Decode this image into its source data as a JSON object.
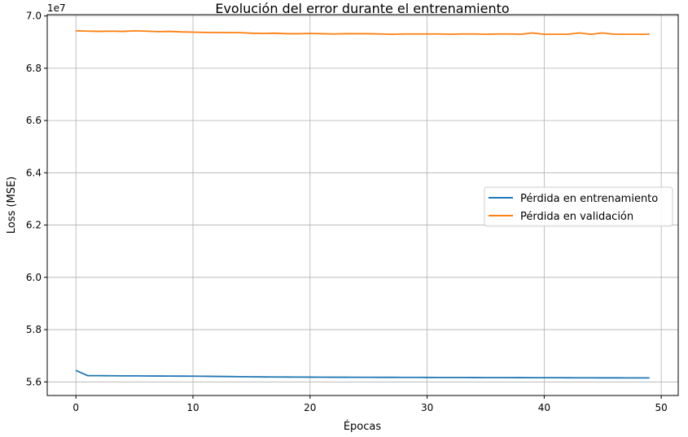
{
  "chart_data": {
    "type": "line",
    "title": "Evolución del error durante el entrenamiento",
    "xlabel": "Épocas",
    "ylabel": "Loss (MSE)",
    "y_offset_label": "1e7",
    "xlim": [
      -2.45,
      51.45
    ],
    "ylim": [
      5.548,
      7.005
    ],
    "xticks": [
      0,
      10,
      20,
      30,
      40,
      50
    ],
    "yticks": [
      5.6,
      5.8,
      6.0,
      6.2,
      6.4,
      6.6,
      6.8,
      7.0
    ],
    "ytick_labels": [
      "5.6",
      "5.8",
      "6.0",
      "6.2",
      "6.4",
      "6.6",
      "6.8",
      "7.0"
    ],
    "grid": true,
    "legend_position": "center-right",
    "x": [
      0,
      1,
      2,
      3,
      4,
      5,
      6,
      7,
      8,
      9,
      10,
      11,
      12,
      13,
      14,
      15,
      16,
      17,
      18,
      19,
      20,
      21,
      22,
      23,
      24,
      25,
      26,
      27,
      28,
      29,
      30,
      31,
      32,
      33,
      34,
      35,
      36,
      37,
      38,
      39,
      40,
      41,
      42,
      43,
      44,
      45,
      46,
      47,
      48,
      49
    ],
    "series": [
      {
        "name": "Pérdida en entrenamiento",
        "color": "#1f77b4",
        "values": [
          5.644,
          5.624,
          5.6238,
          5.6235,
          5.6232,
          5.623,
          5.6228,
          5.6226,
          5.6224,
          5.6222,
          5.622,
          5.6215,
          5.621,
          5.6205,
          5.62,
          5.6195,
          5.619,
          5.6188,
          5.6186,
          5.6184,
          5.6182,
          5.618,
          5.6179,
          5.6178,
          5.6177,
          5.6176,
          5.6175,
          5.6174,
          5.6173,
          5.6172,
          5.6171,
          5.617,
          5.6169,
          5.6168,
          5.6167,
          5.6166,
          5.6165,
          5.6164,
          5.6163,
          5.6162,
          5.6161,
          5.616,
          5.6159,
          5.6158,
          5.6157,
          5.6156,
          5.6155,
          5.6154,
          5.6153,
          5.6152
        ]
      },
      {
        "name": "Pérdida en validación",
        "color": "#ff7f0e",
        "values": [
          6.943,
          6.942,
          6.941,
          6.942,
          6.941,
          6.943,
          6.942,
          6.94,
          6.941,
          6.939,
          6.938,
          6.937,
          6.937,
          6.936,
          6.936,
          6.934,
          6.933,
          6.934,
          6.932,
          6.932,
          6.933,
          6.932,
          6.931,
          6.932,
          6.932,
          6.932,
          6.931,
          6.93,
          6.931,
          6.931,
          6.931,
          6.931,
          6.93,
          6.931,
          6.931,
          6.93,
          6.931,
          6.931,
          6.93,
          6.935,
          6.93,
          6.93,
          6.93,
          6.935,
          6.93,
          6.935,
          6.93,
          6.93,
          6.93,
          6.93
        ]
      }
    ]
  }
}
